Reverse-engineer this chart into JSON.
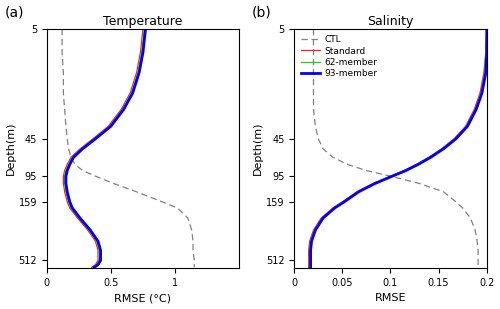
{
  "title_a": "Temperature",
  "title_b": "Salinity",
  "xlabel_a": "RMSE (°C)",
  "xlabel_b": "RMSE",
  "ylabel": "Depth(m)",
  "label_a": "(a)",
  "label_b": "(b)",
  "legend_labels": [
    "CTL",
    "Standard",
    "62-member",
    "93-member"
  ],
  "depth_ticks": [
    5,
    45,
    95,
    159,
    512
  ],
  "depth_tick_labels": [
    "5",
    "45",
    "95",
    "159",
    "512"
  ],
  "xlim_a": [
    0,
    1.5
  ],
  "xlim_b": [
    0,
    0.2
  ],
  "xticks_a": [
    0,
    0.5,
    1.0
  ],
  "xtick_labels_a": [
    "0",
    "0.5",
    "1"
  ],
  "xticks_b": [
    0,
    0.05,
    0.1,
    0.15,
    0.2
  ],
  "xtick_labels_b": [
    "0",
    "0.05",
    "0.1",
    "0.15",
    "0.2"
  ],
  "depths": [
    5,
    8,
    12,
    18,
    25,
    35,
    45,
    55,
    65,
    75,
    85,
    95,
    110,
    130,
    159,
    180,
    220,
    280,
    350,
    420,
    512,
    560,
    590
  ],
  "temp_CTL": [
    0.12,
    0.12,
    0.13,
    0.13,
    0.14,
    0.15,
    0.16,
    0.17,
    0.19,
    0.22,
    0.28,
    0.38,
    0.52,
    0.7,
    0.9,
    1.02,
    1.1,
    1.13,
    1.14,
    1.14,
    1.15,
    1.15,
    1.15
  ],
  "temp_Exp1": [
    0.75,
    0.73,
    0.7,
    0.65,
    0.58,
    0.48,
    0.36,
    0.26,
    0.19,
    0.16,
    0.14,
    0.13,
    0.13,
    0.14,
    0.16,
    0.18,
    0.24,
    0.32,
    0.38,
    0.4,
    0.4,
    0.38,
    0.35
  ],
  "temp_Exp2": [
    0.76,
    0.74,
    0.71,
    0.66,
    0.59,
    0.49,
    0.37,
    0.27,
    0.2,
    0.17,
    0.15,
    0.14,
    0.14,
    0.15,
    0.17,
    0.19,
    0.25,
    0.33,
    0.39,
    0.41,
    0.41,
    0.39,
    0.36
  ],
  "temp_Exp3": [
    0.77,
    0.75,
    0.72,
    0.67,
    0.6,
    0.5,
    0.38,
    0.28,
    0.21,
    0.18,
    0.16,
    0.15,
    0.15,
    0.16,
    0.18,
    0.2,
    0.26,
    0.34,
    0.4,
    0.42,
    0.42,
    0.4,
    0.37
  ],
  "sal_depths": [
    5,
    8,
    12,
    18,
    25,
    35,
    45,
    55,
    65,
    75,
    85,
    95,
    110,
    130,
    159,
    180,
    220,
    280,
    350,
    420,
    512,
    560,
    590
  ],
  "sal_CTL": [
    0.02,
    0.02,
    0.02,
    0.02,
    0.02,
    0.022,
    0.025,
    0.03,
    0.04,
    0.055,
    0.075,
    0.1,
    0.13,
    0.155,
    0.168,
    0.175,
    0.183,
    0.188,
    0.19,
    0.191,
    0.191,
    0.191,
    0.191
  ],
  "sal_Exp1": [
    0.2,
    0.199,
    0.197,
    0.193,
    0.187,
    0.178,
    0.166,
    0.153,
    0.14,
    0.127,
    0.114,
    0.1,
    0.082,
    0.065,
    0.05,
    0.04,
    0.028,
    0.02,
    0.016,
    0.015,
    0.015,
    0.015,
    0.015
  ],
  "sal_Exp2": [
    0.2,
    0.199,
    0.198,
    0.194,
    0.188,
    0.179,
    0.167,
    0.154,
    0.141,
    0.128,
    0.115,
    0.101,
    0.083,
    0.066,
    0.051,
    0.041,
    0.029,
    0.021,
    0.017,
    0.016,
    0.016,
    0.016,
    0.016
  ],
  "sal_Exp3": [
    0.2,
    0.2,
    0.199,
    0.195,
    0.189,
    0.18,
    0.168,
    0.155,
    0.142,
    0.129,
    0.116,
    0.102,
    0.084,
    0.067,
    0.052,
    0.042,
    0.03,
    0.022,
    0.018,
    0.017,
    0.017,
    0.017,
    0.017
  ],
  "depth_plot_min": 5,
  "depth_plot_max": 600
}
